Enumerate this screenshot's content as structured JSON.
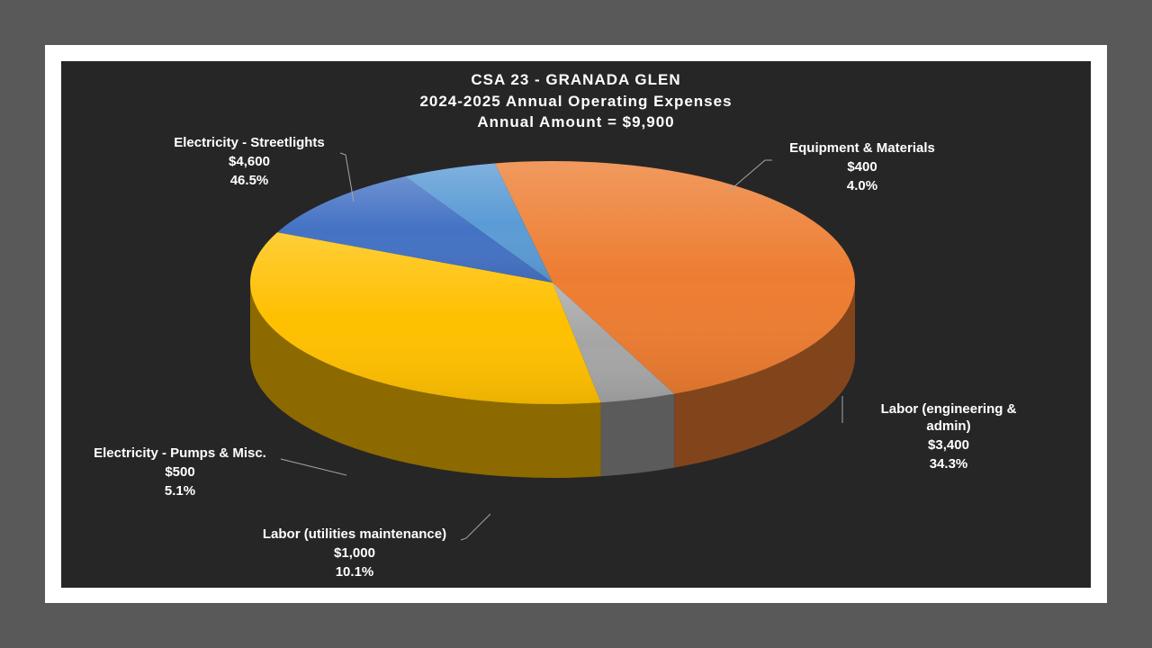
{
  "chart_data": {
    "type": "pie",
    "title_lines": [
      "CSA 23 - GRANADA GLEN",
      "2024-2025 Annual Operating Expenses",
      "Annual Amount = $9,900"
    ],
    "slices": [
      {
        "label": "Electricity - Streetlights",
        "value": 4600,
        "value_text": "$4,600",
        "percent_text": "46.5%",
        "color": "#ED7D31"
      },
      {
        "label": "Equipment & Materials",
        "value": 400,
        "value_text": "$400",
        "percent_text": "4.0%",
        "color": "#A5A5A5"
      },
      {
        "label": "Labor (engineering & admin)",
        "value": 3400,
        "value_text": "$3,400",
        "percent_text": "34.3%",
        "color": "#FFC000"
      },
      {
        "label": "Labor (utilities maintenance)",
        "value": 1000,
        "value_text": "$1,000",
        "percent_text": "10.1%",
        "color": "#4472C4"
      },
      {
        "label": "Electricity - Pumps & Misc.",
        "value": 500,
        "value_text": "$500",
        "percent_text": "5.1%",
        "color": "#5B9BD5"
      }
    ]
  }
}
